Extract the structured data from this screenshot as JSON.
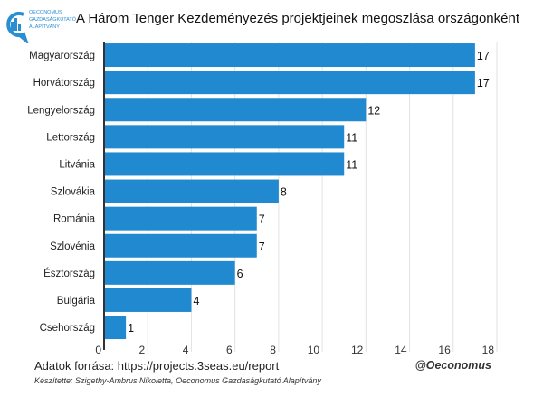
{
  "logo": {
    "line1": "OECONOMUS",
    "line2": "GAZDASÁGKUTATÓ",
    "line3": "ALAPÍTVÁNY"
  },
  "footer": {
    "source": "Adatok forrása: https://projects.3seas.eu/report",
    "handle": "@Oeconomus",
    "credit": "Készítette: Szigethy-Ambrus Nikoletta, Oeconomus Gazdaságkutató Alapítvány"
  },
  "chart_data": {
    "type": "bar",
    "orientation": "horizontal",
    "title": "A Három Tenger Kezdeményezés projektjeinek megoszlása országonként",
    "categories": [
      "Magyarország",
      "Horvátország",
      "Lengyelország",
      "Lettország",
      "Litvánia",
      "Szlovákia",
      "Románia",
      "Szlovénia",
      "Észtország",
      "Bulgária",
      "Csehország"
    ],
    "values": [
      17,
      17,
      12,
      11,
      11,
      8,
      7,
      7,
      6,
      4,
      1
    ],
    "xlim": [
      0,
      18
    ],
    "xticks": [
      0,
      2,
      4,
      6,
      8,
      10,
      12,
      14,
      16,
      18
    ],
    "grid": true,
    "bar_color": "#2189d0",
    "xlabel": "",
    "ylabel": ""
  }
}
